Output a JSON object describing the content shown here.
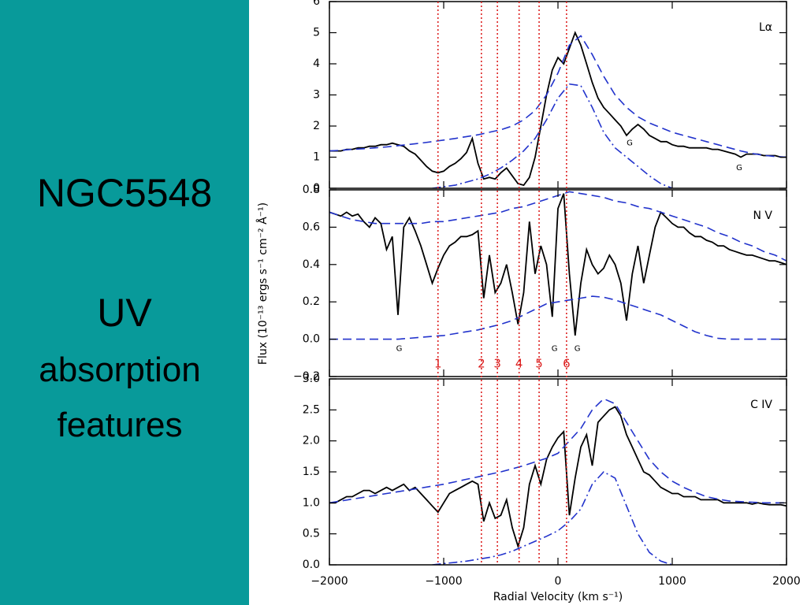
{
  "slide": {
    "title": "NGC5548",
    "subtitle": "UV",
    "body": [
      "absorption",
      "features"
    ]
  },
  "chart_data": [
    {
      "type": "line",
      "label": "Lα",
      "xlim": [
        -2000,
        2000
      ],
      "ylim": [
        0,
        6
      ],
      "yticks": [
        0,
        1,
        2,
        3,
        4,
        5,
        6
      ],
      "series": [
        {
          "color": "#000000",
          "style": "solid",
          "x": [
            -2000,
            -1950,
            -1900,
            -1850,
            -1800,
            -1750,
            -1700,
            -1650,
            -1600,
            -1550,
            -1500,
            -1450,
            -1400,
            -1350,
            -1300,
            -1250,
            -1200,
            -1150,
            -1100,
            -1050,
            -1000,
            -950,
            -900,
            -850,
            -800,
            -750,
            -700,
            -650,
            -600,
            -550,
            -500,
            -450,
            -400,
            -350,
            -300,
            -250,
            -200,
            -150,
            -100,
            -50,
            0,
            50,
            100,
            150,
            200,
            250,
            300,
            350,
            400,
            450,
            500,
            550,
            600,
            650,
            700,
            750,
            800,
            850,
            900,
            950,
            1000,
            1050,
            1100,
            1150,
            1200,
            1250,
            1300,
            1350,
            1400,
            1450,
            1500,
            1550,
            1600,
            1650,
            1700,
            1750,
            1800,
            1850,
            1900,
            1950,
            2000
          ],
          "values": [
            1.2,
            1.2,
            1.2,
            1.25,
            1.25,
            1.3,
            1.3,
            1.35,
            1.35,
            1.4,
            1.4,
            1.45,
            1.4,
            1.35,
            1.2,
            1.1,
            0.9,
            0.7,
            0.55,
            0.5,
            0.55,
            0.7,
            0.8,
            0.95,
            1.15,
            1.6,
            0.8,
            0.3,
            0.35,
            0.3,
            0.5,
            0.65,
            0.4,
            0.15,
            0.1,
            0.35,
            1.0,
            2.0,
            3.0,
            3.8,
            4.2,
            4.0,
            4.5,
            5.0,
            4.6,
            4.0,
            3.4,
            2.9,
            2.6,
            2.4,
            2.2,
            2.0,
            1.7,
            1.9,
            2.05,
            1.9,
            1.7,
            1.6,
            1.5,
            1.5,
            1.4,
            1.35,
            1.35,
            1.3,
            1.3,
            1.3,
            1.3,
            1.25,
            1.25,
            1.2,
            1.15,
            1.1,
            1.0,
            1.1,
            1.1,
            1.1,
            1.05,
            1.05,
            1.05,
            1.0,
            1.0
          ]
        },
        {
          "color": "#2233cc",
          "style": "dashed",
          "x": [
            -2000,
            -1900,
            -1800,
            -1700,
            -1600,
            -1500,
            -1400,
            -1300,
            -1200,
            -1100,
            -1000,
            -900,
            -800,
            -700,
            -600,
            -500,
            -400,
            -300,
            -200,
            -100,
            0,
            100,
            200,
            300,
            400,
            500,
            600,
            700,
            800,
            900,
            1000,
            1100,
            1200,
            1300,
            1400,
            1500,
            1600,
            1700,
            1800,
            1900,
            2000
          ],
          "values": [
            1.2,
            1.22,
            1.25,
            1.27,
            1.3,
            1.33,
            1.37,
            1.41,
            1.45,
            1.5,
            1.55,
            1.6,
            1.66,
            1.72,
            1.8,
            1.88,
            2.0,
            2.2,
            2.5,
            3.0,
            3.7,
            4.6,
            4.9,
            4.3,
            3.6,
            3.0,
            2.6,
            2.3,
            2.1,
            1.95,
            1.8,
            1.7,
            1.6,
            1.5,
            1.4,
            1.3,
            1.2,
            1.12,
            1.06,
            1.02,
            1.0
          ]
        },
        {
          "color": "#2233cc",
          "style": "dashdot",
          "x": [
            -1100,
            -1000,
            -900,
            -800,
            -700,
            -600,
            -500,
            -400,
            -300,
            -200,
            -100,
            0,
            100,
            200,
            300,
            400,
            500,
            600,
            700,
            800,
            900,
            1000
          ],
          "values": [
            0,
            0.05,
            0.1,
            0.2,
            0.3,
            0.45,
            0.65,
            0.9,
            1.2,
            1.6,
            2.2,
            2.9,
            3.35,
            3.3,
            2.6,
            1.8,
            1.3,
            1.0,
            0.7,
            0.4,
            0.15,
            0
          ]
        }
      ],
      "annotations": [
        {
          "x": 628,
          "y": 1.45,
          "text": "G"
        },
        {
          "x": 1586,
          "y": 0.66,
          "text": "G"
        }
      ]
    },
    {
      "type": "line",
      "label": "N V",
      "xlim": [
        -2000,
        2000
      ],
      "ylim": [
        -0.2,
        0.8
      ],
      "yticks": [
        {
          "value": -0.2,
          "label": "−0.2"
        },
        {
          "value": 0,
          "label": "0.0"
        },
        0.2,
        0.4,
        0.6,
        0.8
      ],
      "ylabel": "Flux (10⁻¹³ ergs s⁻¹ cm⁻² Å⁻¹)",
      "series": [
        {
          "color": "#000000",
          "style": "solid",
          "x": [
            -2000,
            -1950,
            -1900,
            -1850,
            -1800,
            -1750,
            -1700,
            -1650,
            -1600,
            -1550,
            -1500,
            -1450,
            -1400,
            -1350,
            -1300,
            -1250,
            -1200,
            -1150,
            -1100,
            -1050,
            -1000,
            -950,
            -900,
            -850,
            -800,
            -750,
            -700,
            -650,
            -600,
            -550,
            -500,
            -450,
            -400,
            -350,
            -300,
            -250,
            -200,
            -150,
            -100,
            -50,
            0,
            50,
            100,
            150,
            200,
            250,
            300,
            350,
            400,
            450,
            500,
            550,
            600,
            650,
            700,
            750,
            800,
            850,
            900,
            950,
            1000,
            1050,
            1100,
            1150,
            1200,
            1250,
            1300,
            1350,
            1400,
            1450,
            1500,
            1550,
            1600,
            1650,
            1700,
            1750,
            1800,
            1850,
            1900,
            1950,
            2000
          ],
          "values": [
            0.68,
            0.67,
            0.66,
            0.68,
            0.66,
            0.67,
            0.63,
            0.6,
            0.65,
            0.62,
            0.48,
            0.55,
            0.13,
            0.6,
            0.65,
            0.58,
            0.5,
            0.4,
            0.3,
            0.38,
            0.45,
            0.5,
            0.52,
            0.55,
            0.55,
            0.56,
            0.58,
            0.22,
            0.45,
            0.25,
            0.3,
            0.4,
            0.25,
            0.08,
            0.25,
            0.63,
            0.35,
            0.5,
            0.4,
            0.12,
            0.7,
            0.78,
            0.35,
            0.02,
            0.3,
            0.48,
            0.4,
            0.35,
            0.38,
            0.45,
            0.4,
            0.3,
            0.1,
            0.35,
            0.5,
            0.3,
            0.45,
            0.6,
            0.68,
            0.65,
            0.62,
            0.6,
            0.6,
            0.57,
            0.55,
            0.55,
            0.53,
            0.52,
            0.5,
            0.5,
            0.48,
            0.47,
            0.46,
            0.45,
            0.45,
            0.44,
            0.43,
            0.42,
            0.42,
            0.41,
            0.4
          ]
        },
        {
          "color": "#2233cc",
          "style": "dashed",
          "x": [
            -2000,
            -1900,
            -1800,
            -1700,
            -1600,
            -1500,
            -1400,
            -1300,
            -1200,
            -1100,
            -1000,
            -900,
            -800,
            -700,
            -600,
            -500,
            -400,
            -300,
            -200,
            -100,
            0,
            100,
            200,
            300,
            400,
            500,
            600,
            700,
            800,
            900,
            1000,
            1100,
            1200,
            1300,
            1400,
            1500,
            1600,
            1700,
            1800,
            1900,
            2000
          ],
          "values": [
            0.68,
            0.66,
            0.64,
            0.63,
            0.62,
            0.62,
            0.62,
            0.62,
            0.62,
            0.63,
            0.63,
            0.64,
            0.65,
            0.66,
            0.67,
            0.68,
            0.7,
            0.71,
            0.73,
            0.75,
            0.77,
            0.79,
            0.78,
            0.77,
            0.76,
            0.74,
            0.73,
            0.71,
            0.7,
            0.68,
            0.66,
            0.64,
            0.62,
            0.6,
            0.57,
            0.55,
            0.52,
            0.5,
            0.47,
            0.45,
            0.42
          ]
        },
        {
          "color": "#2233cc",
          "style": "dashed",
          "x": [
            -2000,
            -1900,
            -1800,
            -1700,
            -1600,
            -1500,
            -1400,
            -1300,
            -1200,
            -1100,
            -1000,
            -900,
            -800,
            -700,
            -600,
            -500,
            -400,
            -300,
            -200,
            -100,
            0,
            100,
            200,
            300,
            400,
            500,
            600,
            700,
            800,
            900,
            1000,
            1100,
            1200,
            1300,
            1400,
            1500,
            1600,
            1700,
            1800,
            1900,
            2000
          ],
          "values": [
            0,
            0,
            0,
            0,
            0,
            0,
            0,
            0.005,
            0.01,
            0.015,
            0.02,
            0.03,
            0.04,
            0.05,
            0.065,
            0.08,
            0.1,
            0.13,
            0.16,
            0.19,
            0.2,
            0.21,
            0.22,
            0.23,
            0.225,
            0.21,
            0.19,
            0.17,
            0.15,
            0.13,
            0.1,
            0.07,
            0.04,
            0.02,
            0.005,
            0,
            0,
            0,
            0,
            0,
            0
          ]
        }
      ],
      "annotations": [
        {
          "x": -1390,
          "y": -0.05,
          "text": "G"
        },
        {
          "x": -30,
          "y": -0.05,
          "text": "G"
        },
        {
          "x": 170,
          "y": -0.05,
          "text": "G"
        }
      ],
      "vlines": {
        "color": "#dd2222",
        "lines": [
          {
            "value": -1050,
            "label": "1"
          },
          {
            "value": -670,
            "label": "2"
          },
          {
            "value": -530,
            "label": "3"
          },
          {
            "value": -340,
            "label": "4"
          },
          {
            "value": -165,
            "label": "5"
          },
          {
            "value": 75,
            "label": "6"
          }
        ]
      }
    },
    {
      "type": "line",
      "label": "C IV",
      "xlim": [
        -2000,
        2000
      ],
      "ylim": [
        0,
        3
      ],
      "yticks": [
        {
          "value": 0,
          "label": "0.0"
        },
        0.5,
        {
          "value": 1,
          "label": "1.0"
        },
        1.5,
        {
          "value": 2,
          "label": "2.0"
        },
        2.5,
        {
          "value": 3,
          "label": "3.0"
        }
      ],
      "xticks": [
        {
          "value": -2000,
          "label": "−2000"
        },
        {
          "value": -1000,
          "label": "−1000"
        },
        0,
        1000,
        2000
      ],
      "xlabel": "Radial Velocity (km s⁻¹)",
      "series": [
        {
          "color": "#000000",
          "style": "solid",
          "x": [
            -2000,
            -1950,
            -1900,
            -1850,
            -1800,
            -1750,
            -1700,
            -1650,
            -1600,
            -1550,
            -1500,
            -1450,
            -1400,
            -1350,
            -1300,
            -1250,
            -1200,
            -1150,
            -1100,
            -1050,
            -1000,
            -950,
            -900,
            -850,
            -800,
            -750,
            -700,
            -650,
            -600,
            -550,
            -500,
            -450,
            -400,
            -350,
            -300,
            -250,
            -200,
            -150,
            -100,
            -50,
            0,
            50,
            100,
            150,
            200,
            250,
            300,
            350,
            400,
            450,
            500,
            550,
            600,
            650,
            700,
            750,
            800,
            850,
            900,
            950,
            1000,
            1050,
            1100,
            1150,
            1200,
            1250,
            1300,
            1350,
            1400,
            1450,
            1500,
            1550,
            1600,
            1650,
            1700,
            1750,
            1800,
            1850,
            1900,
            1950,
            2000
          ],
          "values": [
            1.0,
            1.0,
            1.05,
            1.1,
            1.1,
            1.15,
            1.2,
            1.2,
            1.15,
            1.2,
            1.25,
            1.2,
            1.25,
            1.3,
            1.2,
            1.25,
            1.15,
            1.05,
            0.95,
            0.85,
            1.0,
            1.15,
            1.2,
            1.25,
            1.3,
            1.35,
            1.3,
            0.7,
            1.0,
            0.75,
            0.8,
            1.05,
            0.6,
            0.3,
            0.6,
            1.3,
            1.6,
            1.3,
            1.7,
            1.9,
            2.05,
            2.15,
            0.8,
            1.4,
            1.9,
            2.1,
            1.6,
            2.3,
            2.4,
            2.5,
            2.55,
            2.4,
            2.1,
            1.9,
            1.7,
            1.5,
            1.45,
            1.35,
            1.25,
            1.2,
            1.15,
            1.15,
            1.1,
            1.1,
            1.1,
            1.05,
            1.05,
            1.05,
            1.05,
            1.0,
            1.0,
            1.0,
            1.0,
            1.0,
            0.98,
            1.0,
            0.98,
            0.97,
            0.97,
            0.97,
            0.95
          ]
        },
        {
          "color": "#2233cc",
          "style": "dashed",
          "x": [
            -2000,
            -1900,
            -1800,
            -1700,
            -1600,
            -1500,
            -1400,
            -1300,
            -1200,
            -1100,
            -1000,
            -900,
            -800,
            -700,
            -600,
            -500,
            -400,
            -300,
            -200,
            -100,
            0,
            100,
            200,
            300,
            400,
            500,
            600,
            700,
            800,
            900,
            1000,
            1100,
            1200,
            1300,
            1400,
            1500,
            1600,
            1700,
            1800,
            1900,
            2000
          ],
          "values": [
            1.0,
            1.03,
            1.06,
            1.09,
            1.12,
            1.15,
            1.18,
            1.21,
            1.24,
            1.27,
            1.3,
            1.34,
            1.38,
            1.42,
            1.46,
            1.5,
            1.55,
            1.6,
            1.66,
            1.72,
            1.8,
            2.0,
            2.2,
            2.5,
            2.68,
            2.6,
            2.3,
            2.0,
            1.7,
            1.5,
            1.35,
            1.25,
            1.17,
            1.1,
            1.06,
            1.03,
            1.02,
            1.01,
            1.0,
            1.0,
            1.0
          ]
        },
        {
          "color": "#2233cc",
          "style": "dashdot",
          "x": [
            -1100,
            -1000,
            -900,
            -800,
            -700,
            -600,
            -500,
            -400,
            -300,
            -200,
            -100,
            0,
            100,
            200,
            300,
            400,
            500,
            600,
            700,
            800,
            900,
            1000
          ],
          "values": [
            0,
            0.02,
            0.04,
            0.06,
            0.09,
            0.12,
            0.16,
            0.22,
            0.3,
            0.38,
            0.46,
            0.55,
            0.7,
            0.9,
            1.3,
            1.5,
            1.4,
            0.95,
            0.5,
            0.2,
            0.06,
            0
          ]
        }
      ]
    }
  ]
}
